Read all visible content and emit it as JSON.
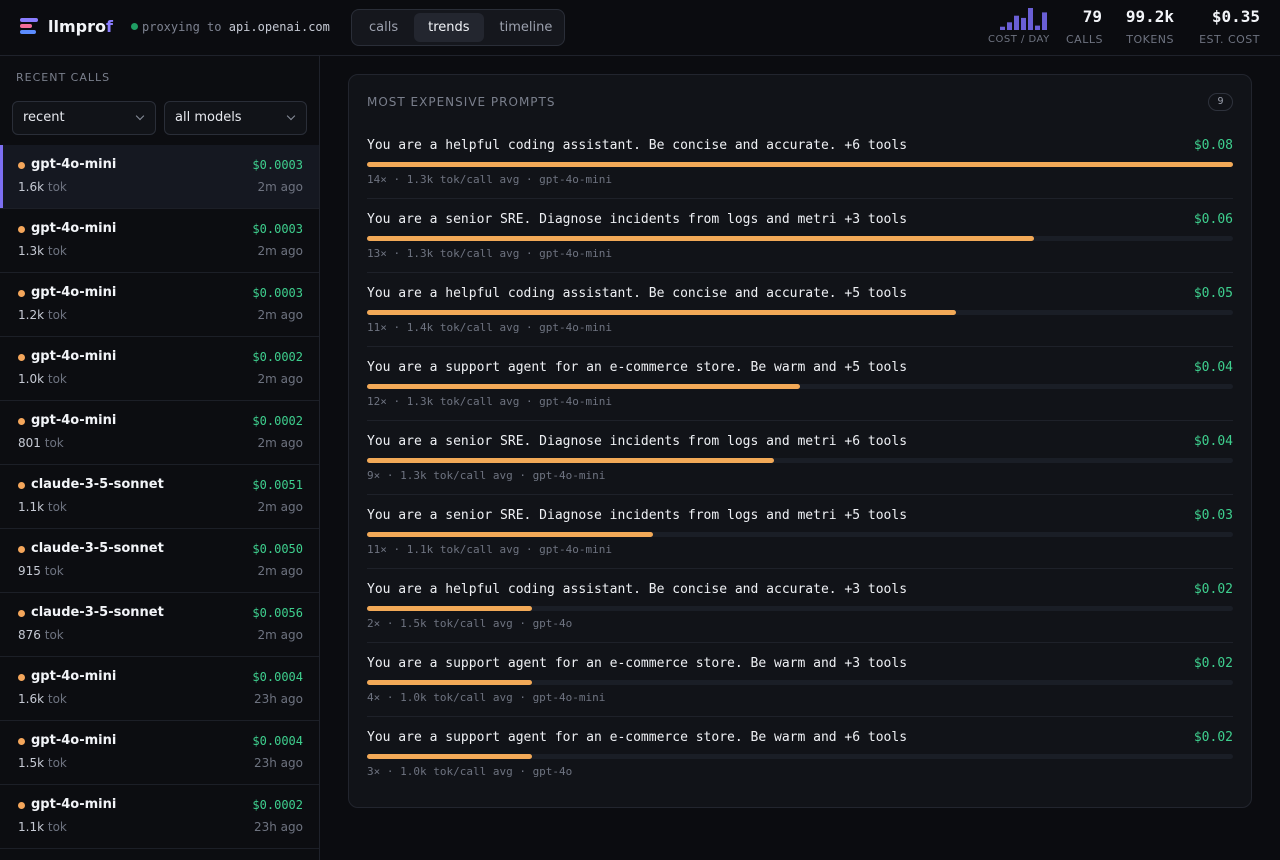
{
  "header": {
    "brand_main": "llmpro",
    "brand_accent": "f",
    "proxy_prefix": "proxying to",
    "proxy_host": "api.openai.com",
    "tabs": [
      {
        "label": "calls",
        "active": false
      },
      {
        "label": "trends",
        "active": true
      },
      {
        "label": "timeline",
        "active": false
      }
    ],
    "cost_per_day_label": "COST / DAY",
    "cost_per_day_levels": [
      0.15,
      0.35,
      0.65,
      0.55,
      1.0,
      0.2,
      0.8
    ],
    "stats": {
      "calls": {
        "value": "79",
        "label": "CALLS"
      },
      "tokens": {
        "value": "99.2k",
        "label": "TOKENS"
      },
      "est_cost": {
        "value": "$0.35",
        "label": "EST. COST"
      }
    }
  },
  "sidebar": {
    "title": "RECENT CALLS",
    "sort_select": {
      "value": "recent"
    },
    "model_select": {
      "value": "all models"
    },
    "calls": [
      {
        "model": "gpt-4o-mini",
        "cost": "$0.0003",
        "tokens": "1.6k",
        "tok_unit": "tok",
        "ago": "2m ago",
        "selected": true
      },
      {
        "model": "gpt-4o-mini",
        "cost": "$0.0003",
        "tokens": "1.3k",
        "tok_unit": "tok",
        "ago": "2m ago"
      },
      {
        "model": "gpt-4o-mini",
        "cost": "$0.0003",
        "tokens": "1.2k",
        "tok_unit": "tok",
        "ago": "2m ago"
      },
      {
        "model": "gpt-4o-mini",
        "cost": "$0.0002",
        "tokens": "1.0k",
        "tok_unit": "tok",
        "ago": "2m ago"
      },
      {
        "model": "gpt-4o-mini",
        "cost": "$0.0002",
        "tokens": "801",
        "tok_unit": "tok",
        "ago": "2m ago"
      },
      {
        "model": "claude-3-5-sonnet",
        "cost": "$0.0051",
        "tokens": "1.1k",
        "tok_unit": "tok",
        "ago": "2m ago"
      },
      {
        "model": "claude-3-5-sonnet",
        "cost": "$0.0050",
        "tokens": "915",
        "tok_unit": "tok",
        "ago": "2m ago"
      },
      {
        "model": "claude-3-5-sonnet",
        "cost": "$0.0056",
        "tokens": "876",
        "tok_unit": "tok",
        "ago": "2m ago"
      },
      {
        "model": "gpt-4o-mini",
        "cost": "$0.0004",
        "tokens": "1.6k",
        "tok_unit": "tok",
        "ago": "23h ago"
      },
      {
        "model": "gpt-4o-mini",
        "cost": "$0.0004",
        "tokens": "1.5k",
        "tok_unit": "tok",
        "ago": "23h ago"
      },
      {
        "model": "gpt-4o-mini",
        "cost": "$0.0002",
        "tokens": "1.1k",
        "tok_unit": "tok",
        "ago": "23h ago"
      }
    ]
  },
  "panel": {
    "title": "MOST EXPENSIVE PROMPTS",
    "count": "9",
    "prompts": [
      {
        "text": "You are a helpful coding assistant. Be concise and accurate. +6 tools",
        "cost": "$0.08",
        "share": 1.0,
        "meta": "14× · 1.3k tok/call avg · gpt-4o-mini"
      },
      {
        "text": "You are a senior SRE. Diagnose incidents from logs and metri +3 tools",
        "cost": "$0.06",
        "share": 0.77,
        "meta": "13× · 1.3k tok/call avg · gpt-4o-mini"
      },
      {
        "text": "You are a helpful coding assistant. Be concise and accurate. +5 tools",
        "cost": "$0.05",
        "share": 0.68,
        "meta": "11× · 1.4k tok/call avg · gpt-4o-mini"
      },
      {
        "text": "You are a support agent for an e-commerce store. Be warm and +5 tools",
        "cost": "$0.04",
        "share": 0.5,
        "meta": "12× · 1.3k tok/call avg · gpt-4o-mini"
      },
      {
        "text": "You are a senior SRE. Diagnose incidents from logs and metri +6 tools",
        "cost": "$0.04",
        "share": 0.47,
        "meta": "9× · 1.3k tok/call avg · gpt-4o-mini"
      },
      {
        "text": "You are a senior SRE. Diagnose incidents from logs and metri +5 tools",
        "cost": "$0.03",
        "share": 0.33,
        "meta": "11× · 1.1k tok/call avg · gpt-4o-mini"
      },
      {
        "text": "You are a helpful coding assistant. Be concise and accurate. +3 tools",
        "cost": "$0.02",
        "share": 0.19,
        "meta": "2× · 1.5k tok/call avg · gpt-4o"
      },
      {
        "text": "You are a support agent for an e-commerce store. Be warm and +3 tools",
        "cost": "$0.02",
        "share": 0.19,
        "meta": "4× · 1.0k tok/call avg · gpt-4o-mini"
      },
      {
        "text": "You are a support agent for an e-commerce store. Be warm and +6 tools",
        "cost": "$0.02",
        "share": 0.19,
        "meta": "3× · 1.0k tok/call avg · gpt-4o"
      }
    ]
  },
  "colors": {
    "accent": "#8a7dff",
    "cost_green": "#3ecf8e",
    "bar_orange": "#f2a957",
    "model_dot": "#f4a65b",
    "status_green": "#1f9d63"
  },
  "icons": {
    "logo": "stacked-bars-logo-icon",
    "select_chevron": "chevron-down-icon"
  }
}
